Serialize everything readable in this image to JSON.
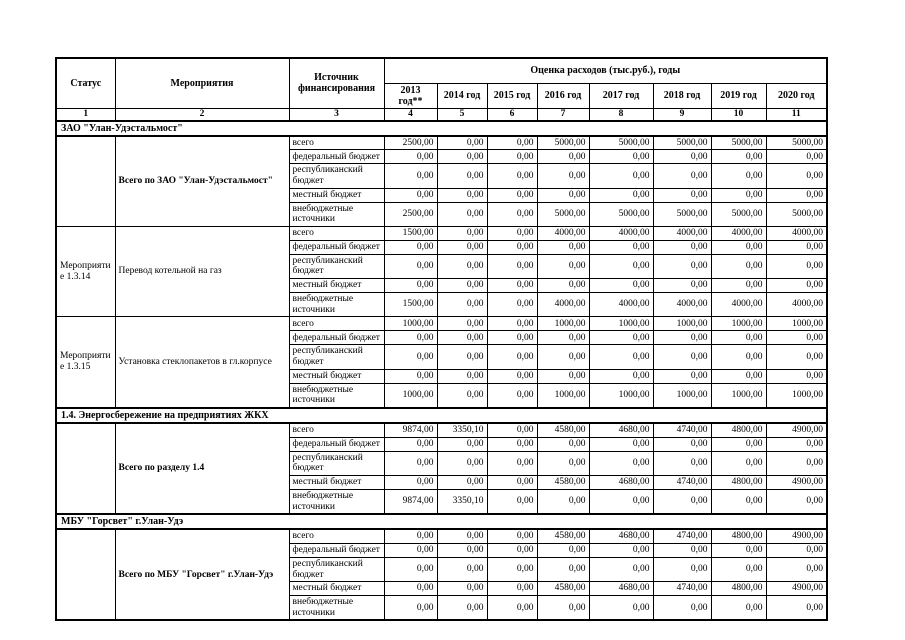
{
  "table": {
    "headers": {
      "status": "Статус",
      "activity": "Мероприятия",
      "source": "Источник финансирования",
      "estimate": "Оценка расходов (тыс.руб.), годы",
      "years": [
        "2013 год**",
        "2014 год",
        "2015 год",
        "2016 год",
        "2017 год",
        "2018 год",
        "2019 год",
        "2020 год"
      ],
      "column_numbers": [
        "1",
        "2",
        "3",
        "4",
        "5",
        "6",
        "7",
        "8",
        "9",
        "10",
        "11"
      ]
    },
    "source_labels": [
      "всего",
      "федеральный бюджет",
      "республиканский бюджет",
      "местный бюджет",
      "внебюджетные источники"
    ],
    "sections": [
      {
        "title": "ЗАО \"Улан-Удэстальмост\"",
        "groups": [
          {
            "status": "",
            "activity": "Всего по ЗАО \"Улан-Удэстальмост\"",
            "activity_bold": true,
            "rows": [
              [
                "2500,00",
                "0,00",
                "0,00",
                "5000,00",
                "5000,00",
                "5000,00",
                "5000,00",
                "5000,00"
              ],
              [
                "0,00",
                "0,00",
                "0,00",
                "0,00",
                "0,00",
                "0,00",
                "0,00",
                "0,00"
              ],
              [
                "0,00",
                "0,00",
                "0,00",
                "0,00",
                "0,00",
                "0,00",
                "0,00",
                "0,00"
              ],
              [
                "0,00",
                "0,00",
                "0,00",
                "0,00",
                "0,00",
                "0,00",
                "0,00",
                "0,00"
              ],
              [
                "2500,00",
                "0,00",
                "0,00",
                "5000,00",
                "5000,00",
                "5000,00",
                "5000,00",
                "5000,00"
              ]
            ]
          },
          {
            "status": "Мероприятие 1.3.14",
            "activity": "Перевод котельной на газ",
            "activity_bold": false,
            "rows": [
              [
                "1500,00",
                "0,00",
                "0,00",
                "4000,00",
                "4000,00",
                "4000,00",
                "4000,00",
                "4000,00"
              ],
              [
                "0,00",
                "0,00",
                "0,00",
                "0,00",
                "0,00",
                "0,00",
                "0,00",
                "0,00"
              ],
              [
                "0,00",
                "0,00",
                "0,00",
                "0,00",
                "0,00",
                "0,00",
                "0,00",
                "0,00"
              ],
              [
                "0,00",
                "0,00",
                "0,00",
                "0,00",
                "0,00",
                "0,00",
                "0,00",
                "0,00"
              ],
              [
                "1500,00",
                "0,00",
                "0,00",
                "4000,00",
                "4000,00",
                "4000,00",
                "4000,00",
                "4000,00"
              ]
            ]
          },
          {
            "status": "Мероприятие 1.3.15",
            "activity": "Установка стеклопакетов в гл.корпусе",
            "activity_bold": false,
            "rows": [
              [
                "1000,00",
                "0,00",
                "0,00",
                "1000,00",
                "1000,00",
                "1000,00",
                "1000,00",
                "1000,00"
              ],
              [
                "0,00",
                "0,00",
                "0,00",
                "0,00",
                "0,00",
                "0,00",
                "0,00",
                "0,00"
              ],
              [
                "0,00",
                "0,00",
                "0,00",
                "0,00",
                "0,00",
                "0,00",
                "0,00",
                "0,00"
              ],
              [
                "0,00",
                "0,00",
                "0,00",
                "0,00",
                "0,00",
                "0,00",
                "0,00",
                "0,00"
              ],
              [
                "1000,00",
                "0,00",
                "0,00",
                "1000,00",
                "1000,00",
                "1000,00",
                "1000,00",
                "1000,00"
              ]
            ]
          }
        ]
      },
      {
        "title": "1.4. Энергосбережение на предприятиях ЖКХ",
        "groups": [
          {
            "status": "",
            "activity": "Всего по разделу 1.4",
            "activity_bold": true,
            "rows": [
              [
                "9874,00",
                "3350,10",
                "0,00",
                "4580,00",
                "4680,00",
                "4740,00",
                "4800,00",
                "4900,00"
              ],
              [
                "0,00",
                "0,00",
                "0,00",
                "0,00",
                "0,00",
                "0,00",
                "0,00",
                "0,00"
              ],
              [
                "0,00",
                "0,00",
                "0,00",
                "0,00",
                "0,00",
                "0,00",
                "0,00",
                "0,00"
              ],
              [
                "0,00",
                "0,00",
                "0,00",
                "4580,00",
                "4680,00",
                "4740,00",
                "4800,00",
                "4900,00"
              ],
              [
                "9874,00",
                "3350,10",
                "0,00",
                "0,00",
                "0,00",
                "0,00",
                "0,00",
                "0,00"
              ]
            ]
          }
        ]
      },
      {
        "title": "МБУ \"Горсвет\" г.Улан-Удэ",
        "groups": [
          {
            "status": "",
            "activity": "Всего по МБУ \"Горсвет\" г.Улан-Удэ",
            "activity_bold": true,
            "rows": [
              [
                "0,00",
                "0,00",
                "0,00",
                "4580,00",
                "4680,00",
                "4740,00",
                "4800,00",
                "4900,00"
              ],
              [
                "0,00",
                "0,00",
                "0,00",
                "0,00",
                "0,00",
                "0,00",
                "0,00",
                "0,00"
              ],
              [
                "0,00",
                "0,00",
                "0,00",
                "0,00",
                "0,00",
                "0,00",
                "0,00",
                "0,00"
              ],
              [
                "0,00",
                "0,00",
                "0,00",
                "4580,00",
                "4680,00",
                "4740,00",
                "4800,00",
                "4900,00"
              ],
              [
                "0,00",
                "0,00",
                "0,00",
                "0,00",
                "0,00",
                "0,00",
                "0,00",
                "0,00"
              ]
            ]
          }
        ]
      }
    ]
  }
}
